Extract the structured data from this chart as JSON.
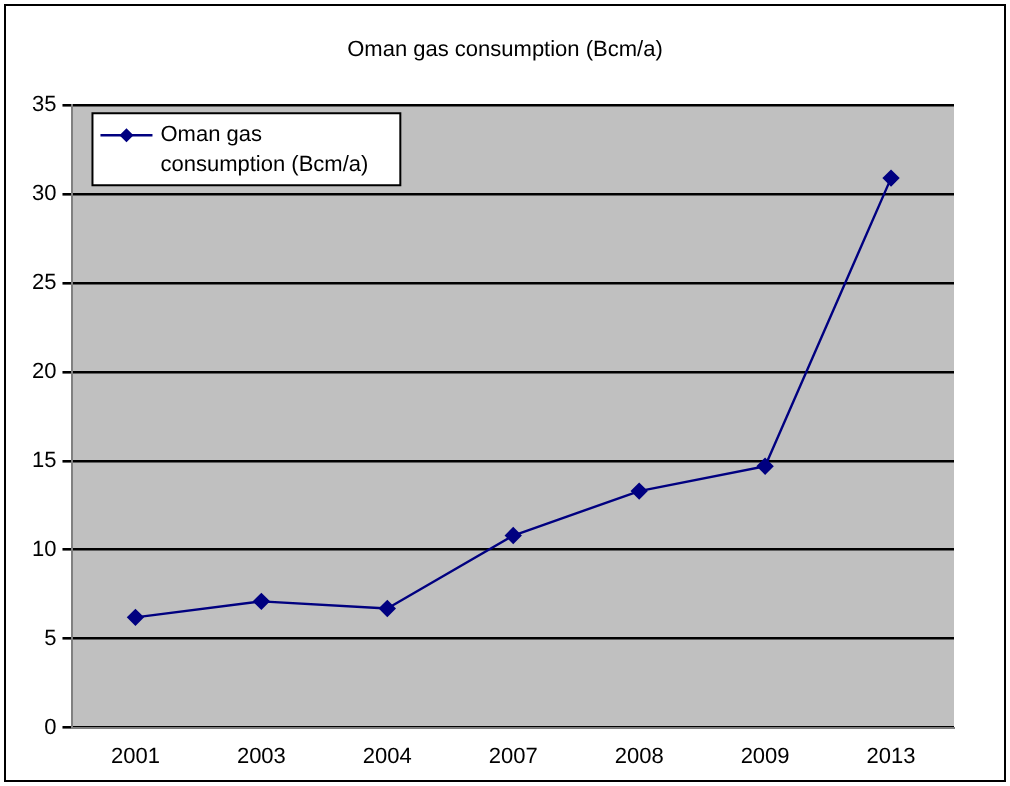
{
  "chart_data": {
    "type": "line",
    "title": "Oman gas consumption (Bcm/a)",
    "categories": [
      "2001",
      "2003",
      "2004",
      "2007",
      "2008",
      "2009",
      "2013"
    ],
    "series": [
      {
        "name": "Oman gas consumption (Bcm/a)",
        "color": "#000080",
        "values": [
          6.2,
          7.1,
          6.7,
          10.8,
          13.3,
          14.7,
          30.9
        ]
      }
    ],
    "ylim": [
      0,
      35
    ],
    "yticks": [
      0,
      5,
      10,
      15,
      20,
      25,
      30,
      35
    ],
    "grid": "y",
    "legend": "top left",
    "marker": "diamond",
    "line_style": "solid"
  }
}
